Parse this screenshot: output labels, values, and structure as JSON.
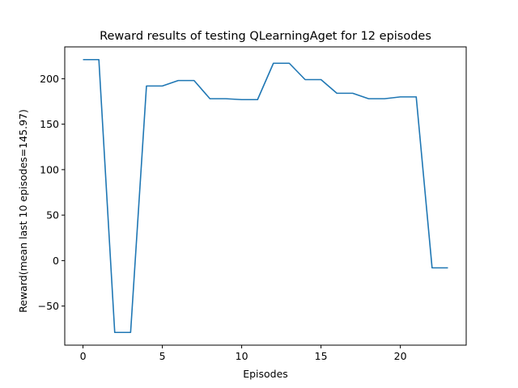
{
  "chart_data": {
    "type": "line",
    "title": "Reward results of testing QLearningAget for 12 episodes",
    "xlabel": "Episodes",
    "ylabel": "Reward(mean last 10 episodes=145.97)",
    "xlim": [
      -1.15,
      24.15
    ],
    "ylim": [
      -93,
      235
    ],
    "xticks": [
      0,
      5,
      10,
      15,
      20
    ],
    "yticks": [
      -50,
      0,
      50,
      100,
      150,
      200
    ],
    "grid": false,
    "series": [
      {
        "color": "#1f77b4",
        "x": [
          0,
          1,
          2,
          3,
          4,
          5,
          6,
          7,
          8,
          9,
          10,
          11,
          12,
          13,
          14,
          15,
          16,
          17,
          18,
          19,
          20,
          21,
          22,
          23
        ],
        "y": [
          221,
          221,
          -79,
          -79,
          192,
          192,
          198,
          198,
          178,
          178,
          177,
          177,
          217,
          217,
          199,
          199,
          184,
          184,
          178,
          178,
          180,
          180,
          -8,
          -8
        ]
      }
    ]
  }
}
